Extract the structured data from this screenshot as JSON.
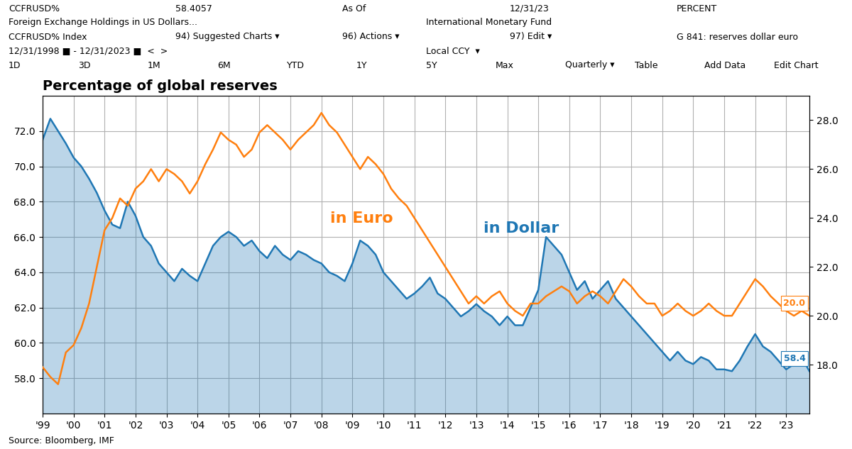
{
  "chart_data": {
    "type": "line",
    "title": "Percentage of global reserves",
    "annotations": [
      [
        "CCFRUSD%",
        "58.4057",
        "As Of",
        "12/31/23",
        "PERCENT"
      ],
      [
        "Foreign Exchange Holdings in US Dollars...",
        "International Monetary Fund"
      ],
      [
        "CCFRUSD% Index",
        "94) Suggested Charts ▾",
        "96) Actions ▾",
        "97) Edit ▾",
        "G 841: reserves dollar euro"
      ],
      [
        "12/31/1998 ■ - 12/31/2023 ■  <  >",
        "Local CCY  ▾"
      ],
      [
        "1D",
        "3D",
        "1M",
        "6M",
        "YTD",
        "1Y",
        "5Y",
        "Max",
        "Quarterly ▾",
        "Table",
        "Add Data",
        "Edit Chart"
      ],
      [
        "Source: Bloomberg, IMF"
      ]
    ],
    "categories": [
      "'99",
      null,
      null,
      null,
      "'00",
      null,
      null,
      null,
      "'01",
      null,
      null,
      null,
      "'02",
      null,
      null,
      null,
      "'03",
      null,
      null,
      null,
      "'04",
      null,
      null,
      null,
      "'05",
      null,
      null,
      null,
      "'06",
      null,
      null,
      null,
      "'07",
      null,
      null,
      null,
      "'08",
      null,
      null,
      null,
      "'09",
      null,
      null,
      null,
      "'10",
      null,
      null,
      null,
      "'11",
      null,
      null,
      null,
      "'12",
      null,
      null,
      null,
      "'13",
      null,
      null,
      null,
      "'14",
      null,
      null,
      null,
      "'15",
      null,
      null,
      null,
      "'16",
      null,
      null,
      null,
      "'17",
      null,
      null,
      null,
      "'18",
      null,
      null,
      null,
      "'19",
      null,
      null,
      null,
      "'20",
      null,
      null,
      null,
      "'21",
      null,
      null,
      null,
      "'22",
      null,
      null,
      null,
      "'23",
      null,
      null,
      null
    ],
    "series": [
      {
        "name": "in Dollar",
        "type": "area",
        "values": [
          71.5,
          72.7,
          72.0,
          71.3,
          70.5,
          70.0,
          69.3,
          68.5,
          67.5,
          66.7,
          66.5,
          68.0,
          67.2,
          66.0,
          65.5,
          64.5,
          64.0,
          63.5,
          64.2,
          63.8,
          63.5,
          64.5,
          65.5,
          66.0,
          66.3,
          66.0,
          65.5,
          65.8,
          65.2,
          64.8,
          65.5,
          65.0,
          64.7,
          65.2,
          65.0,
          64.7,
          64.5,
          64.0,
          63.8,
          63.5,
          64.5,
          65.8,
          65.5,
          65.0,
          64.0,
          63.5,
          63.0,
          62.5,
          62.8,
          63.2,
          63.7,
          62.8,
          62.5,
          62.0,
          61.5,
          61.8,
          62.2,
          61.8,
          61.5,
          61.0,
          61.5,
          61.0,
          61.0,
          62.0,
          63.0,
          66.0,
          65.5,
          65.0,
          64.0,
          63.0,
          63.5,
          62.5,
          63.0,
          63.5,
          62.5,
          62.0,
          61.5,
          61.0,
          60.5,
          60.0,
          59.5,
          59.0,
          59.5,
          59.0,
          58.8,
          59.2,
          59.0,
          58.5,
          58.5,
          58.4,
          59.0,
          59.8,
          60.5,
          59.8,
          59.5,
          59.0,
          58.5,
          58.8,
          59.2,
          58.4
        ],
        "value_labels": [
          null,
          null,
          null,
          null,
          null,
          null,
          null,
          null,
          null,
          null,
          null,
          null,
          null,
          null,
          null,
          null,
          null,
          null,
          null,
          null,
          null,
          null,
          null,
          null,
          null,
          null,
          null,
          null,
          null,
          null,
          null,
          null,
          null,
          null,
          null,
          null,
          null,
          null,
          null,
          null,
          null,
          null,
          null,
          null,
          null,
          null,
          null,
          null,
          null,
          null,
          null,
          null,
          null,
          null,
          null,
          null,
          null,
          null,
          null,
          null,
          null,
          null,
          null,
          null,
          null,
          null,
          null,
          null,
          null,
          null,
          null,
          null,
          null,
          null,
          null,
          null,
          null,
          null,
          null,
          null,
          null,
          null,
          null,
          null,
          null,
          null,
          null,
          null,
          null,
          null,
          null,
          null,
          null,
          null,
          null,
          null,
          null,
          null,
          null,
          "58.4"
        ]
      },
      {
        "name": "in Euro",
        "type": "line",
        "axis": "y2",
        "values": [
          17.9,
          17.5,
          17.2,
          18.5,
          18.8,
          19.5,
          20.5,
          22.0,
          23.5,
          24.0,
          24.8,
          24.5,
          25.2,
          25.5,
          26.0,
          25.5,
          26.0,
          25.8,
          25.5,
          25.0,
          25.5,
          26.2,
          26.8,
          27.5,
          27.2,
          27.0,
          26.5,
          26.8,
          27.5,
          27.8,
          27.5,
          27.2,
          26.8,
          27.2,
          27.5,
          27.8,
          28.3,
          27.8,
          27.5,
          27.0,
          26.5,
          26.0,
          26.5,
          26.2,
          25.8,
          25.2,
          24.8,
          24.5,
          24.0,
          23.5,
          23.0,
          22.5,
          22.0,
          21.5,
          21.0,
          20.5,
          20.8,
          20.5,
          20.8,
          21.0,
          20.5,
          20.2,
          20.0,
          20.5,
          20.5,
          20.8,
          21.0,
          21.2,
          21.0,
          20.5,
          20.8,
          21.0,
          20.8,
          20.5,
          21.0,
          21.5,
          21.2,
          20.8,
          20.5,
          20.5,
          20.0,
          20.2,
          20.5,
          20.2,
          20.0,
          20.2,
          20.5,
          20.2,
          20.0,
          20.0,
          20.5,
          21.0,
          21.5,
          21.2,
          20.8,
          20.5,
          20.2,
          20.0,
          20.2,
          20.0
        ],
        "value_labels": [
          null,
          null,
          null,
          null,
          null,
          null,
          null,
          null,
          null,
          null,
          null,
          null,
          null,
          null,
          null,
          null,
          null,
          null,
          null,
          null,
          null,
          null,
          null,
          null,
          null,
          null,
          null,
          null,
          null,
          null,
          null,
          null,
          null,
          null,
          null,
          null,
          null,
          null,
          null,
          null,
          null,
          null,
          null,
          null,
          null,
          null,
          null,
          null,
          null,
          null,
          null,
          null,
          null,
          null,
          null,
          null,
          null,
          null,
          null,
          null,
          null,
          null,
          null,
          null,
          null,
          null,
          null,
          null,
          null,
          null,
          null,
          null,
          null,
          null,
          null,
          null,
          null,
          null,
          null,
          null,
          null,
          null,
          null,
          null,
          null,
          null,
          null,
          null,
          null,
          null,
          null,
          null,
          null,
          null,
          null,
          null,
          null,
          null,
          null,
          "20.0"
        ]
      }
    ],
    "data_labels": true,
    "ylim": [
      56.0,
      74.0
    ],
    "yticks": [
      {
        "value": 58.0,
        "label": "58.0"
      },
      {
        "value": 60.0,
        "label": "60.0"
      },
      {
        "value": 62.0,
        "label": "62.0"
      },
      {
        "value": 64.0,
        "label": "64.0"
      },
      {
        "value": 66.0,
        "label": "66.0"
      },
      {
        "value": 68.0,
        "label": "68.0"
      },
      {
        "value": 70.0,
        "label": "70.0"
      },
      {
        "value": 72.0,
        "label": "72.0"
      }
    ],
    "y2lim": [
      16.0,
      29.0
    ],
    "y2ticks": [
      {
        "value": 18.0,
        "label": "18.0"
      },
      {
        "value": 20.0,
        "label": "20.0"
      },
      {
        "value": 22.0,
        "label": "22.0"
      },
      {
        "value": 24.0,
        "label": "24.0"
      },
      {
        "value": 26.0,
        "label": "26.0"
      },
      {
        "value": 28.0,
        "label": "28.0"
      }
    ],
    "grid": true
  }
}
